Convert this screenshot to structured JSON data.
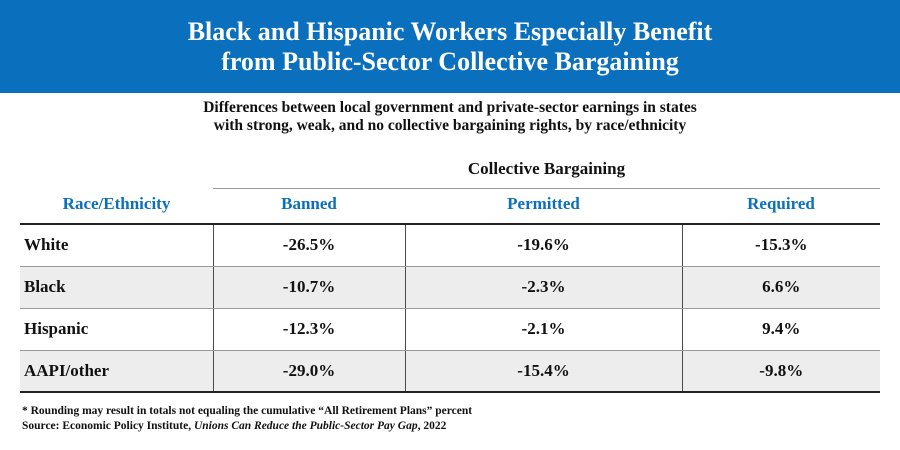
{
  "title_lines": [
    "Black and Hispanic Workers Especially Benefit",
    "from Public-Sector Collective Bargaining"
  ],
  "subtitle_lines": [
    "Differences between local government and private-sector earnings in states",
    "with strong, weak, and no collective bargaining rights, by race/ethnicity"
  ],
  "colors": {
    "banner": "#0a6fbd",
    "header_text": "#0a6fbd",
    "shaded_row": "#ededed"
  },
  "chart_data": {
    "type": "table",
    "title": "Black and Hispanic Workers Especially Benefit from Public-Sector Collective Bargaining",
    "subtitle": "Differences between local government and private-sector earnings in states with strong, weak, and no collective bargaining rights, by race/ethnicity",
    "group_header": "Collective Bargaining",
    "row_header": "Race/Ethnicity",
    "columns": [
      "Banned",
      "Permitted",
      "Required"
    ],
    "rows": [
      {
        "label": "White",
        "values": [
          "-26.5%",
          "-19.6%",
          "-15.3%"
        ]
      },
      {
        "label": "Black",
        "values": [
          "-10.7%",
          "-2.3%",
          "6.6%"
        ]
      },
      {
        "label": "Hispanic",
        "values": [
          "-12.3%",
          "-2.1%",
          "9.4%"
        ]
      },
      {
        "label": "AAPI/other",
        "values": [
          "-29.0%",
          "-15.4%",
          "-9.8%"
        ]
      }
    ]
  },
  "footnote": "* Rounding may result in totals not equaling the cumulative “All Retirement Plans” percent",
  "source": {
    "prefix": "Source: Economic Policy Institute, ",
    "title": "Unions Can Reduce the Public-Sector Pay Gap",
    "suffix": ", 2022"
  }
}
